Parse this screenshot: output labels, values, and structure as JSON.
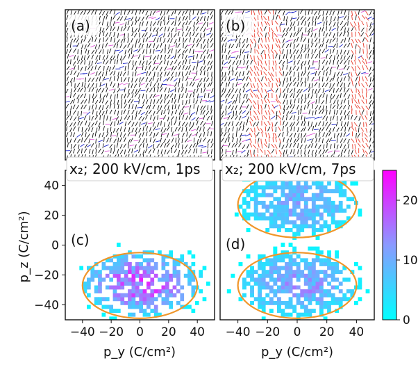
{
  "panels_top": [
    {
      "label": "(a)",
      "condition": "x₂; 200 kV/cm, 1ps"
    },
    {
      "label": "(b)",
      "condition": "x₂; 200 kV/cm, 7ps"
    }
  ],
  "colorbar": {
    "ticks": [
      "0",
      "10",
      "20"
    ],
    "min": 0,
    "max": 25,
    "colors": [
      "#00ffff",
      "#ff00ff"
    ]
  },
  "colors": {
    "ellipse": "#f0962a",
    "arrow_black": "#111111",
    "arrow_blue": "#1a24c8",
    "arrow_pink": "#e05ad8",
    "arrow_red": "#e83a2a"
  },
  "chart_data": [
    {
      "type": "heatmap",
      "panel": "(c)",
      "xlabel": "p_y (C/cm²)",
      "ylabel": "p_z (C/cm²)",
      "xlim": [
        -52,
        52
      ],
      "ylim": [
        -50,
        50
      ],
      "xticks": [
        -40,
        -20,
        0,
        20,
        40
      ],
      "yticks": [
        40,
        20,
        0,
        -20,
        -40
      ],
      "clusters": [
        {
          "center": [
            0,
            -27
          ],
          "semi_axes": [
            40,
            22
          ],
          "peak": 20
        }
      ],
      "ellipses": [
        {
          "center": [
            0,
            -27
          ],
          "semi_axes": [
            40,
            22
          ]
        }
      ]
    },
    {
      "type": "heatmap",
      "panel": "(d)",
      "xlabel": "p_y (C/cm²)",
      "ylabel": "",
      "xlim": [
        -52,
        52
      ],
      "ylim": [
        -50,
        50
      ],
      "xticks": [
        -40,
        -20,
        0,
        20,
        40
      ],
      "yticks": [],
      "clusters": [
        {
          "center": [
            0,
            27
          ],
          "semi_axes": [
            40,
            22
          ],
          "peak": 12
        },
        {
          "center": [
            0,
            -27
          ],
          "semi_axes": [
            40,
            22
          ],
          "peak": 14
        }
      ],
      "ellipses": [
        {
          "center": [
            0,
            27
          ],
          "semi_axes": [
            40,
            22
          ]
        },
        {
          "center": [
            0,
            -27
          ],
          "semi_axes": [
            40,
            22
          ]
        }
      ]
    }
  ]
}
